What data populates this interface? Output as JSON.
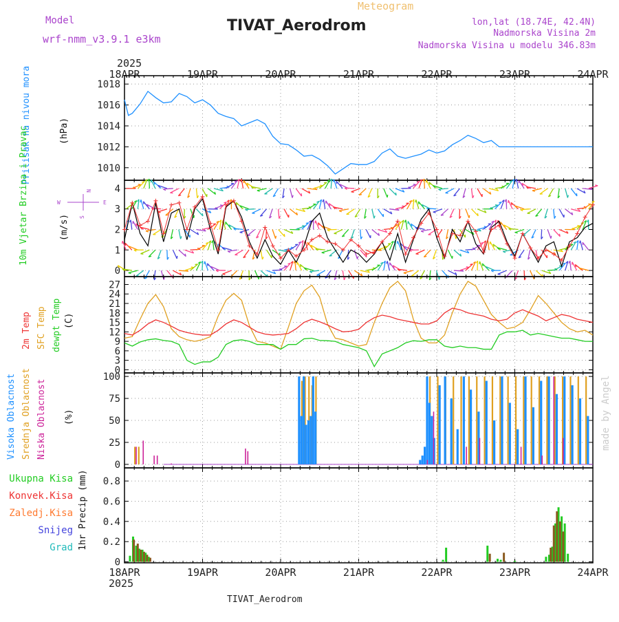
{
  "header": {
    "model_label": "Model",
    "model_name": "wrf-nmm_v3.9.1 e3km",
    "meteogram_label": "Meteogram",
    "station_title": "TIVAT_Aerodrom",
    "lonlat": "lon,lat (18.74E, 42.4N)",
    "altitude": "Nadmorska Visina 2m",
    "model_altitude": "Nadmorska Visina u modelu 346.83m",
    "year_top": "2025",
    "year_bottom": "2025",
    "footer_station": "TIVAT_Aerodrom",
    "credit": "made by Angel"
  },
  "colors": {
    "pressure": "#1e90ff",
    "wind_label": "#22cc22",
    "t2m": "#ee3333",
    "sfc": "#e0a020",
    "dew": "#22cc22",
    "cloud_high": "#1e90ff",
    "cloud_mid": "#e0a020",
    "cloud_low": "#cc2299",
    "purple": "#aa44cc",
    "precip_total": "#22cc22",
    "precip_conv": "#ee3333",
    "precip_frozen": "#ff7a30",
    "snow": "#4444dd",
    "hail": "#22bbbb",
    "legend_orange": "#f0c070"
  },
  "chart_data": [
    {
      "type": "line",
      "title": "Pritisak na nivou mora",
      "ylabel": "(hPa)",
      "xlabels": [
        "18APR",
        "19APR",
        "20APR",
        "21APR",
        "22APR",
        "23APR",
        "24APR"
      ],
      "ylim": [
        1008.8,
        1018.8
      ],
      "yticks": [
        "1010",
        "1012",
        "1014",
        "1016",
        "1018"
      ],
      "x_days": [
        0,
        0.05,
        0.1,
        0.2,
        0.3,
        0.4,
        0.5,
        0.6,
        0.7,
        0.8,
        0.9,
        1.0,
        1.1,
        1.2,
        1.3,
        1.4,
        1.5,
        1.6,
        1.7,
        1.8,
        1.9,
        2.0,
        2.1,
        2.2,
        2.3,
        2.4,
        2.5,
        2.6,
        2.7,
        2.8,
        2.9,
        3.0,
        3.1,
        3.2,
        3.3,
        3.4,
        3.5,
        3.6,
        3.7,
        3.8,
        3.9,
        4.0,
        4.1,
        4.2,
        4.3,
        4.4,
        4.5,
        4.6,
        4.7,
        4.8,
        4.9,
        5.0,
        5.1,
        5.2,
        5.3,
        5.4,
        5.5,
        5.6,
        5.7,
        5.8,
        5.9,
        6.0
      ],
      "series": [
        {
          "name": "Pritisak",
          "values": [
            1016.5,
            1015.0,
            1015.2,
            1016.1,
            1017.3,
            1016.7,
            1016.2,
            1016.3,
            1017.1,
            1016.8,
            1016.2,
            1016.5,
            1016.0,
            1015.2,
            1014.9,
            1014.7,
            1014.0,
            1014.3,
            1014.6,
            1014.2,
            1013.0,
            1012.3,
            1012.2,
            1011.7,
            1011.1,
            1011.2,
            1010.8,
            1010.2,
            1009.4,
            1009.9,
            1010.4,
            1010.3,
            1010.3,
            1010.6,
            1011.4,
            1011.8,
            1011.1,
            1010.9,
            1011.1,
            1011.3,
            1011.7,
            1011.4,
            1011.6,
            1012.2,
            1012.6,
            1013.1,
            1012.8,
            1012.4,
            1012.6,
            1012.0,
            1012.0,
            1012.0,
            1012.0,
            1012.0,
            1012.0,
            1012.0,
            1012.0,
            1012.0,
            1012.0,
            1012.0,
            1012.0,
            1012.0
          ]
        }
      ]
    },
    {
      "type": "line",
      "title": "10m Vjetar Brzina i Pravac",
      "ylabel": "(m/s)",
      "compass": "N",
      "compass_w": "W",
      "compass_e": "E",
      "compass_s": "S",
      "ylim": [
        -0.3,
        4.4
      ],
      "yticks": [
        "0",
        "1",
        "2",
        "3",
        "4"
      ],
      "x_days": [
        0,
        0.1,
        0.2,
        0.3,
        0.4,
        0.5,
        0.6,
        0.7,
        0.8,
        0.9,
        1.0,
        1.1,
        1.2,
        1.3,
        1.4,
        1.5,
        1.6,
        1.7,
        1.8,
        1.9,
        2.0,
        2.1,
        2.2,
        2.3,
        2.4,
        2.5,
        2.6,
        2.7,
        2.8,
        2.9,
        3.0,
        3.1,
        3.2,
        3.3,
        3.4,
        3.5,
        3.6,
        3.7,
        3.8,
        3.9,
        4.0,
        4.1,
        4.2,
        4.3,
        4.4,
        4.5,
        4.6,
        4.7,
        4.8,
        4.9,
        5.0,
        5.1,
        5.2,
        5.3,
        5.4,
        5.5,
        5.6,
        5.7,
        5.8,
        5.9,
        6.0
      ],
      "series": [
        {
          "name": "Brzina",
          "values": [
            1.5,
            3.3,
            1.8,
            1.2,
            3.3,
            1.4,
            2.8,
            3.0,
            1.5,
            3.0,
            3.5,
            2.0,
            0.8,
            3.1,
            3.4,
            2.6,
            1.4,
            0.6,
            1.5,
            0.7,
            0.3,
            1.0,
            0.4,
            1.2,
            2.4,
            2.8,
            1.6,
            1.0,
            0.4,
            1.0,
            0.8,
            0.4,
            0.8,
            1.4,
            0.5,
            1.8,
            0.4,
            1.5,
            2.5,
            3.0,
            1.6,
            0.6,
            2.0,
            1.4,
            2.4,
            1.3,
            0.8,
            2.1,
            2.4,
            1.4,
            0.7,
            1.8,
            1.1,
            0.4,
            1.2,
            1.4,
            0.2,
            1.4,
            1.6,
            2.1,
            2.3
          ]
        },
        {
          "name": "Udari",
          "values": [
            2.0,
            3.3,
            2.2,
            2.4,
            3.4,
            1.8,
            3.2,
            3.3,
            2.0,
            3.1,
            3.6,
            2.3,
            1.0,
            3.2,
            3.4,
            2.4,
            1.2,
            0.8,
            2.1,
            1.2,
            0.6,
            1.0,
            0.7,
            1.0,
            1.5,
            1.7,
            1.4,
            1.3,
            1.0,
            1.5,
            1.2,
            0.8,
            0.9,
            1.4,
            1.8,
            2.4,
            0.8,
            1.6,
            2.3,
            2.8,
            2.0,
            0.7,
            1.8,
            1.7,
            2.4,
            1.9,
            0.9,
            2.0,
            2.2,
            1.3,
            0.6,
            1.8,
            1.1,
            0.6,
            1.0,
            0.8,
            0.5,
            1.2,
            1.8,
            2.6,
            3.2
          ]
        }
      ]
    },
    {
      "type": "line",
      "title": "Temperatura",
      "series_labels": [
        "2m Temp",
        "SFC Temp",
        "dewpt Temp"
      ],
      "ylabel": "(C)",
      "ylim": [
        -1,
        29.5
      ],
      "yticks": [
        "0",
        "3",
        "6",
        "9",
        "12",
        "15",
        "18",
        "21",
        "24",
        "27"
      ],
      "x_days": [
        0,
        0.1,
        0.2,
        0.3,
        0.4,
        0.5,
        0.6,
        0.7,
        0.8,
        0.9,
        1.0,
        1.1,
        1.2,
        1.3,
        1.4,
        1.5,
        1.6,
        1.7,
        1.8,
        1.9,
        2.0,
        2.1,
        2.2,
        2.3,
        2.4,
        2.5,
        2.6,
        2.7,
        2.8,
        2.9,
        3.0,
        3.1,
        3.2,
        3.3,
        3.4,
        3.5,
        3.6,
        3.7,
        3.8,
        3.9,
        4.0,
        4.1,
        4.2,
        4.3,
        4.4,
        4.5,
        4.6,
        4.7,
        4.8,
        4.9,
        5.0,
        5.1,
        5.2,
        5.3,
        5.4,
        5.5,
        5.6,
        5.7,
        5.8,
        5.9,
        6.0
      ],
      "series": [
        {
          "name": "2m Temp",
          "values": [
            11.5,
            11.0,
            12.5,
            14.5,
            15.8,
            15.0,
            13.8,
            12.5,
            11.8,
            11.3,
            11.0,
            11.0,
            12.5,
            14.5,
            15.8,
            15.0,
            13.5,
            12.0,
            11.3,
            11.0,
            11.2,
            11.5,
            13.0,
            15.0,
            16.0,
            15.2,
            14.2,
            13.0,
            12.0,
            12.2,
            12.8,
            15.0,
            16.5,
            17.3,
            16.8,
            16.0,
            15.5,
            15.0,
            14.5,
            14.5,
            15.5,
            18.0,
            19.5,
            19.0,
            18.0,
            17.5,
            17.0,
            16.0,
            15.5,
            16.0,
            18.0,
            19.0,
            18.0,
            17.0,
            15.5,
            16.5,
            17.5,
            17.0,
            16.0,
            15.5,
            15.0
          ]
        },
        {
          "name": "SFC Temp",
          "values": [
            10.0,
            10.5,
            16.0,
            21.0,
            23.8,
            20.0,
            13.0,
            10.5,
            9.5,
            9.0,
            9.5,
            10.5,
            17.0,
            22.0,
            24.2,
            22.0,
            14.0,
            9.0,
            8.5,
            7.5,
            6.5,
            13.5,
            21.0,
            25.0,
            26.8,
            23.0,
            14.5,
            10.0,
            9.5,
            8.5,
            7.5,
            8.0,
            15.0,
            21.0,
            26.0,
            28.0,
            25.0,
            16.0,
            10.0,
            8.5,
            8.5,
            11.0,
            18.0,
            24.0,
            28.0,
            26.5,
            22.0,
            17.5,
            15.0,
            13.0,
            13.5,
            15.0,
            19.0,
            23.5,
            21.0,
            18.0,
            15.0,
            13.0,
            12.0,
            12.5,
            11.0
          ]
        },
        {
          "name": "dewpt Temp",
          "values": [
            8.5,
            7.5,
            8.8,
            9.5,
            9.8,
            9.3,
            9.0,
            8.0,
            3.0,
            1.7,
            2.5,
            2.5,
            4.0,
            8.0,
            9.2,
            9.5,
            9.0,
            8.0,
            8.0,
            8.0,
            6.5,
            8.0,
            8.0,
            9.8,
            10.0,
            9.3,
            9.2,
            9.0,
            8.0,
            7.5,
            7.0,
            6.0,
            1.0,
            5.0,
            6.0,
            7.0,
            8.5,
            9.2,
            9.0,
            9.5,
            9.5,
            7.5,
            7.0,
            7.5,
            7.0,
            7.0,
            6.5,
            6.5,
            11.0,
            12.0,
            12.0,
            12.5,
            11.0,
            11.5,
            11.0,
            10.5,
            10.0,
            10.0,
            9.5,
            9.0,
            9.0
          ]
        }
      ]
    },
    {
      "type": "bar",
      "series_labels": [
        "Visoka Oblacnost",
        "Srednja Oblacnost",
        "Niska Oblacnost"
      ],
      "ylabel": "(%)",
      "ylim": [
        -4,
        104
      ],
      "yticks": [
        "0",
        "25",
        "50",
        "75",
        "100"
      ],
      "series": [
        {
          "name": "Visoka",
          "x_days": [
            2.25,
            2.28,
            2.31,
            2.34,
            2.37,
            2.4,
            2.43,
            2.46,
            3.8,
            3.83,
            3.86,
            3.89,
            3.92,
            3.95,
            3.98,
            4.05,
            4.12,
            4.2,
            4.28,
            4.36,
            4.45,
            4.55,
            4.65,
            4.75,
            4.85,
            4.95,
            5.05,
            5.15,
            5.25,
            5.35,
            5.45,
            5.55,
            5.65,
            5.75,
            5.85,
            5.95
          ],
          "values": [
            100,
            55,
            100,
            45,
            50,
            55,
            100,
            60,
            5,
            10,
            20,
            100,
            70,
            55,
            30,
            90,
            100,
            75,
            40,
            100,
            85,
            60,
            95,
            50,
            100,
            70,
            40,
            100,
            65,
            95,
            100,
            80,
            100,
            90,
            75,
            55
          ]
        },
        {
          "name": "Srednja",
          "x_days": [
            0.12,
            0.17,
            2.26,
            2.3,
            2.35,
            2.39,
            2.44,
            3.9,
            4.0,
            4.1,
            4.2,
            4.3,
            4.4,
            4.5,
            4.6,
            4.7,
            4.8,
            4.9,
            5.0,
            5.1,
            5.2,
            5.3,
            5.4,
            5.5,
            5.6,
            5.7,
            5.8,
            5.9
          ],
          "values": [
            20,
            20,
            95,
            100,
            100,
            90,
            100,
            100,
            100,
            100,
            100,
            100,
            100,
            100,
            100,
            100,
            100,
            100,
            100,
            100,
            100,
            100,
            100,
            100,
            100,
            100,
            100,
            100
          ]
        },
        {
          "name": "Niska",
          "x_days": [
            0.15,
            0.24,
            0.38,
            0.42,
            0.6,
            1.55,
            1.58,
            3.88,
            3.96,
            4.38,
            4.55,
            5.08,
            5.35,
            5.5,
            5.62
          ],
          "values": [
            20,
            27,
            10,
            10,
            1,
            18,
            15,
            5,
            60,
            20,
            30,
            20,
            10,
            100,
            30
          ]
        }
      ]
    },
    {
      "type": "bar",
      "series_labels": [
        "Ukupna Kisa",
        "Konvek.Kisa",
        "Zaledj.Kisa",
        "Snijeg",
        "Grad"
      ],
      "ylabel": "1hr Precip (mm)",
      "ylim": [
        -0.01,
        0.93
      ],
      "yticks": [
        "0",
        "0.2",
        "0.4",
        "0.6",
        "0.8"
      ],
      "series": [
        {
          "name": "Ukupna",
          "x_days": [
            0.07,
            0.11,
            0.15,
            0.19,
            0.23,
            0.27,
            0.31,
            4.08,
            4.12,
            4.65,
            4.78,
            4.82,
            5.0,
            5.4,
            5.44,
            5.48,
            5.52,
            5.56,
            5.6,
            5.64,
            5.68
          ],
          "values": [
            0.06,
            0.25,
            0.16,
            0.13,
            0.12,
            0.09,
            0.05,
            0.02,
            0.14,
            0.16,
            0.03,
            0.02,
            0.01,
            0.05,
            0.07,
            0.15,
            0.38,
            0.54,
            0.45,
            0.38,
            0.08
          ]
        },
        {
          "name": "Konvek.",
          "x_days": [
            0.12,
            0.17,
            0.21,
            0.25,
            0.29,
            0.33,
            4.68,
            4.86,
            5.46,
            5.5,
            5.54,
            5.58,
            5.62
          ],
          "values": [
            0.22,
            0.18,
            0.12,
            0.1,
            0.07,
            0.04,
            0.08,
            0.09,
            0.14,
            0.36,
            0.5,
            0.4,
            0.3
          ]
        }
      ]
    }
  ]
}
